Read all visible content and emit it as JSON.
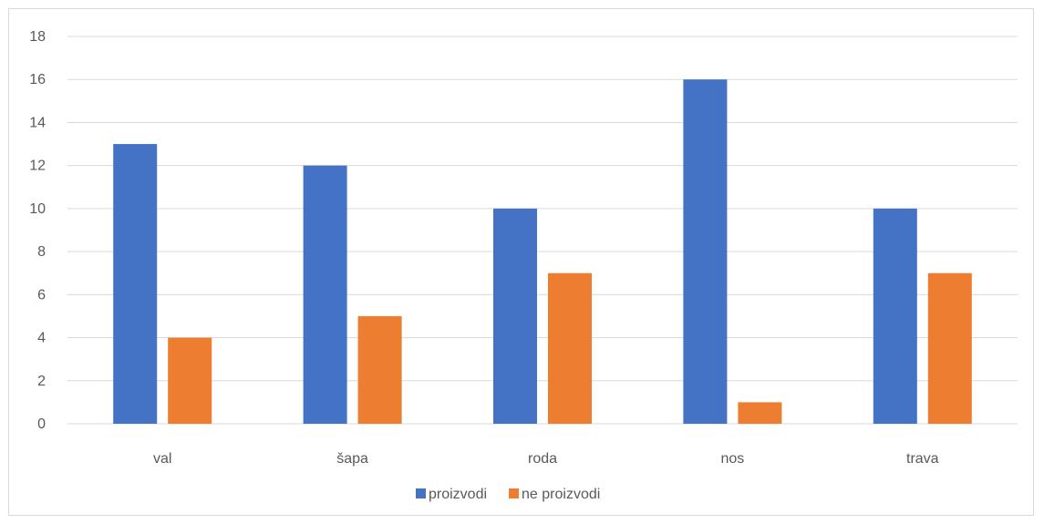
{
  "chart_data": {
    "type": "bar",
    "categories": [
      "val",
      "šapa",
      "roda",
      "nos",
      "trava"
    ],
    "series": [
      {
        "name": "proizvodi",
        "values": [
          13,
          12,
          10,
          16,
          10
        ],
        "color": "#4472c4"
      },
      {
        "name": "ne proizvodi",
        "values": [
          4,
          5,
          7,
          1,
          7
        ],
        "color": "#ed7d31"
      }
    ],
    "ylim": [
      0,
      18
    ],
    "yticks": [
      0,
      2,
      4,
      6,
      8,
      10,
      12,
      14,
      16,
      18
    ],
    "grid": true,
    "legend_position": "bottom",
    "gridline_color": "#d9d9d9"
  }
}
